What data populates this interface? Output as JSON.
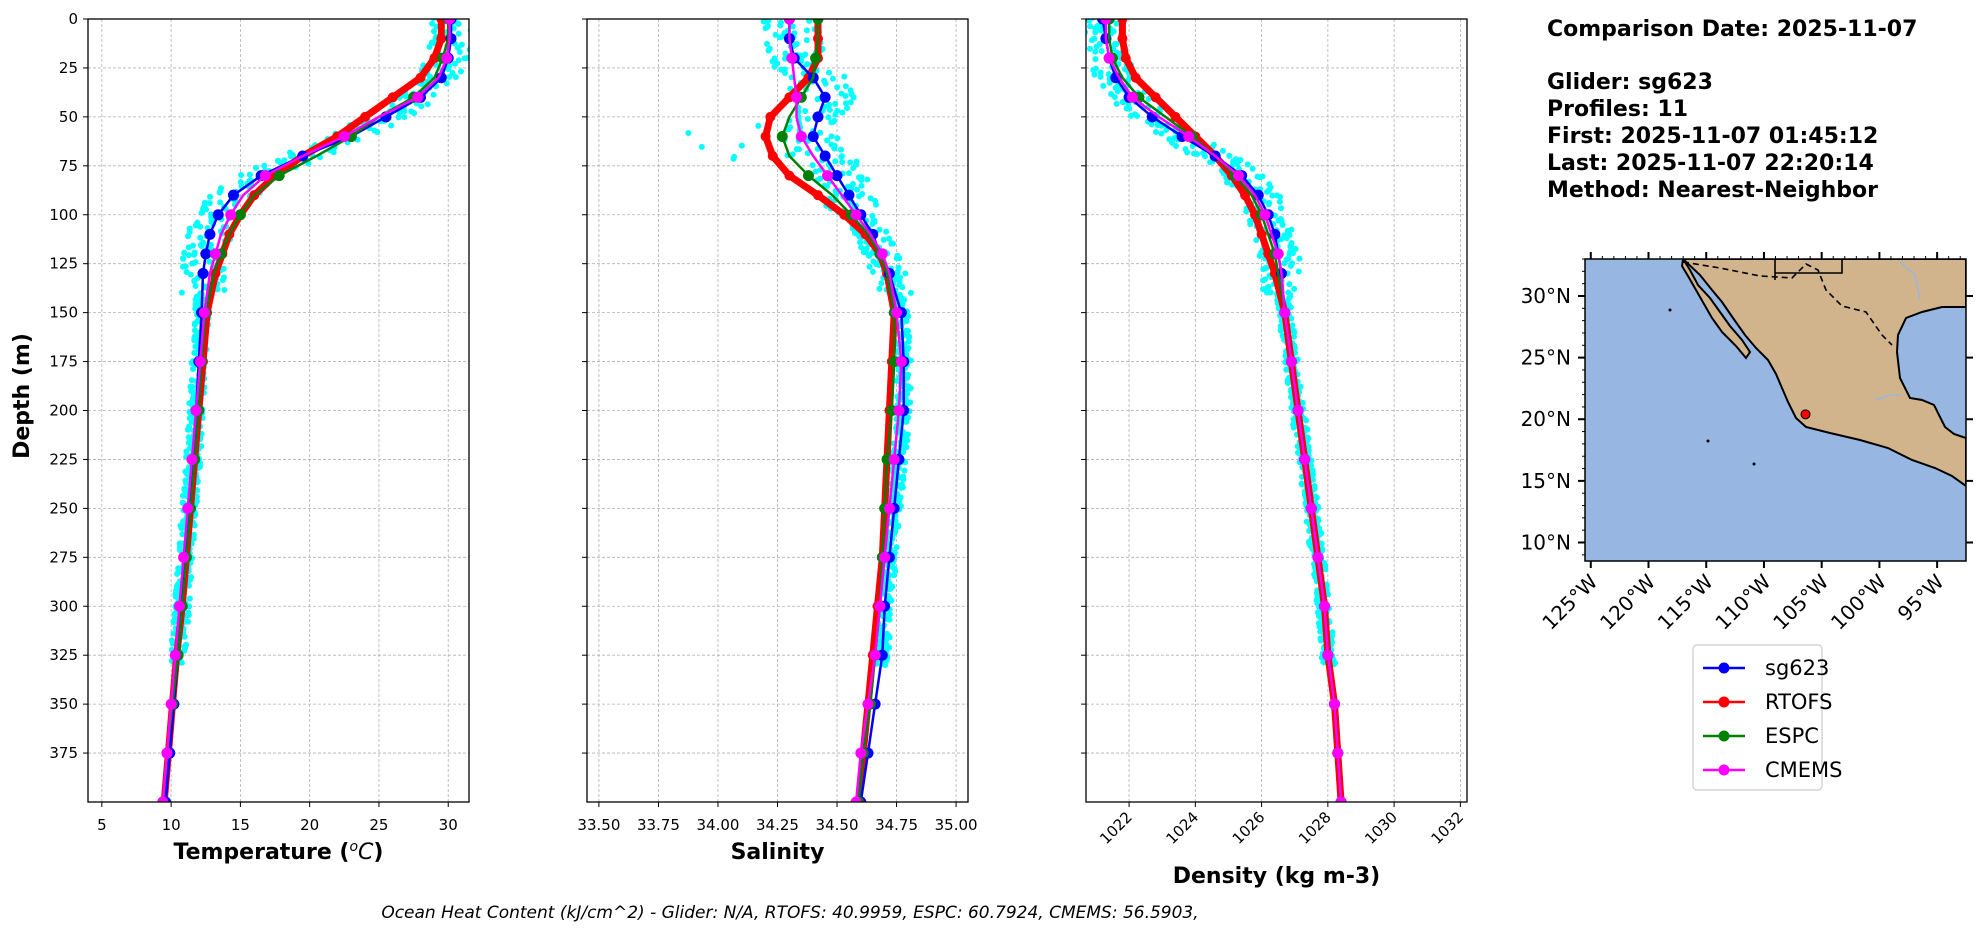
{
  "colors": {
    "glider": "#0000ff",
    "rtofs": "#ff0000",
    "espc": "#008000",
    "cmems": "#ff00ff",
    "glider_scatter": "#00ffff",
    "ocean": "#97b6e1",
    "land": "#d2b48c",
    "grid": "#b0b0b0"
  },
  "depth_axis": {
    "label": "Depth (m)",
    "ticks": [
      0,
      25,
      50,
      75,
      100,
      125,
      150,
      175,
      200,
      225,
      250,
      275,
      300,
      325,
      350,
      375
    ],
    "lim": [
      0,
      400
    ],
    "inverted": true
  },
  "info": {
    "comparison_date": "Comparison Date: 2025-11-07",
    "glider": "Glider: sg623",
    "profiles": "Profiles: 11",
    "first": "First: 2025-11-07 01:45:12",
    "last": "Last: 2025-11-07 22:20:14",
    "method": "Method: Nearest-Neighbor"
  },
  "footer": {
    "ohc": "Ocean Heat Content (kJ/cm^2) - Glider: N/A,  RTOFS: 40.9959,  ESPC: 60.7924,  CMEMS: 56.5903,"
  },
  "legend": {
    "placement": "below map",
    "entries": [
      "sg623",
      "RTOFS",
      "ESPC",
      "CMEMS"
    ]
  },
  "map": {
    "lat_ticks": [
      "30°N",
      "25°N",
      "20°N",
      "15°N",
      "10°N"
    ],
    "lat_values": [
      30,
      25,
      20,
      15,
      10
    ],
    "lon_ticks": [
      "125°W",
      "120°W",
      "115°W",
      "110°W",
      "105°W",
      "100°W",
      "95°W"
    ],
    "lon_values": [
      -125,
      -120,
      -115,
      -110,
      -105,
      -100,
      -95
    ],
    "extent": {
      "lon": [
        -125.5,
        -92.5
      ],
      "lat": [
        8.5,
        33
      ]
    },
    "glider_position": {
      "lon": -106.4,
      "lat": 20.4
    }
  },
  "chart_data": [
    {
      "type": "line",
      "xlabel": "Temperature",
      "xlim": [
        4,
        31.5
      ],
      "xticks": [
        5,
        10,
        15,
        20,
        25,
        30
      ],
      "grid": true,
      "series": [
        {
          "name": "sg623",
          "key": "glider",
          "depth": [
            0,
            10,
            20,
            30,
            40,
            50,
            60,
            70,
            80,
            90,
            100,
            110,
            120,
            130,
            150,
            175,
            200,
            225,
            250,
            275,
            300,
            325,
            350,
            375,
            400
          ],
          "values": [
            30.2,
            30.2,
            30.0,
            29.5,
            28.0,
            25.5,
            23.0,
            19.5,
            16.5,
            14.5,
            13.4,
            12.8,
            12.5,
            12.3,
            12.2,
            12.0,
            11.8,
            11.6,
            11.3,
            11.0,
            10.8,
            10.5,
            10.2,
            9.9,
            9.6
          ]
        },
        {
          "name": "RTOFS",
          "key": "rtofs",
          "depth": [
            0,
            10,
            20,
            30,
            40,
            50,
            60,
            70,
            80,
            90,
            100,
            110,
            120,
            130,
            150,
            175,
            200,
            225,
            250,
            275,
            300,
            325,
            350,
            375,
            400
          ],
          "values": [
            29.5,
            29.5,
            29.0,
            28.0,
            26.0,
            24.0,
            22.0,
            19.5,
            17.5,
            16.0,
            15.0,
            14.2,
            13.7,
            13.2,
            12.6,
            12.3,
            12.0,
            11.7,
            11.4,
            11.1,
            10.8,
            10.4,
            10.1,
            9.8,
            9.5
          ]
        },
        {
          "name": "ESPC",
          "key": "espc",
          "depth": [
            0,
            10,
            20,
            30,
            40,
            50,
            60,
            70,
            80,
            90,
            100,
            110,
            120,
            130,
            150,
            175,
            200,
            225,
            250,
            275,
            300,
            325,
            350,
            375,
            400
          ],
          "values": [
            30.0,
            30.0,
            29.6,
            29.0,
            27.5,
            25.0,
            23.0,
            20.5,
            17.8,
            16.0,
            15.0,
            14.2,
            13.6,
            13.1,
            12.5,
            12.2,
            12.0,
            11.7,
            11.4,
            11.1,
            10.8,
            10.5,
            10.1,
            9.7,
            9.4
          ]
        },
        {
          "name": "CMEMS",
          "key": "cmems",
          "depth": [
            0,
            10,
            20,
            30,
            40,
            50,
            60,
            70,
            80,
            90,
            100,
            110,
            120,
            130,
            150,
            175,
            200,
            225,
            250,
            275,
            300,
            325,
            350,
            375,
            400
          ],
          "values": [
            30.1,
            30.1,
            29.9,
            29.3,
            27.8,
            25.0,
            22.5,
            19.5,
            16.8,
            15.2,
            14.3,
            13.6,
            13.2,
            12.8,
            12.4,
            12.1,
            11.8,
            11.5,
            11.2,
            10.9,
            10.6,
            10.3,
            10.0,
            9.7,
            9.4
          ]
        }
      ]
    },
    {
      "type": "line",
      "xlabel": "Salinity",
      "xlim": [
        33.45,
        35.05
      ],
      "xticks": [
        33.5,
        33.75,
        34.0,
        34.25,
        34.5,
        34.75,
        35.0
      ],
      "xticklabels": [
        "33.50",
        "33.75",
        "34.00",
        "34.25",
        "34.50",
        "34.75",
        "35.00"
      ],
      "grid": true,
      "series": [
        {
          "name": "sg623",
          "key": "glider",
          "depth": [
            0,
            10,
            20,
            30,
            40,
            50,
            60,
            70,
            80,
            90,
            100,
            110,
            120,
            130,
            150,
            175,
            200,
            225,
            250,
            275,
            300,
            325,
            350,
            375,
            400
          ],
          "values": [
            34.3,
            34.3,
            34.32,
            34.4,
            34.45,
            34.42,
            34.4,
            34.45,
            34.5,
            34.55,
            34.6,
            34.65,
            34.68,
            34.72,
            34.77,
            34.78,
            34.78,
            34.76,
            34.74,
            34.72,
            34.7,
            34.69,
            34.66,
            34.63,
            34.6
          ]
        },
        {
          "name": "RTOFS",
          "key": "rtofs",
          "depth": [
            0,
            10,
            20,
            30,
            40,
            50,
            60,
            70,
            80,
            90,
            100,
            110,
            120,
            130,
            150,
            175,
            200,
            225,
            250,
            275,
            300,
            325,
            350,
            375,
            400
          ],
          "values": [
            34.42,
            34.42,
            34.42,
            34.38,
            34.3,
            34.22,
            34.2,
            34.23,
            34.3,
            34.42,
            34.53,
            34.62,
            34.68,
            34.71,
            34.74,
            34.73,
            34.72,
            34.71,
            34.7,
            34.69,
            34.67,
            34.65,
            34.63,
            34.61,
            34.59
          ]
        },
        {
          "name": "ESPC",
          "key": "espc",
          "depth": [
            0,
            10,
            20,
            30,
            40,
            50,
            60,
            70,
            80,
            90,
            100,
            110,
            120,
            130,
            150,
            175,
            200,
            225,
            250,
            275,
            300,
            325,
            350,
            375,
            400
          ],
          "values": [
            34.42,
            34.42,
            34.41,
            34.4,
            34.35,
            34.3,
            34.27,
            34.3,
            34.38,
            34.48,
            34.56,
            34.63,
            34.68,
            34.71,
            34.74,
            34.74,
            34.73,
            34.71,
            34.7,
            34.69,
            34.68,
            34.66,
            34.64,
            34.61,
            34.59
          ]
        },
        {
          "name": "CMEMS",
          "key": "cmems",
          "depth": [
            0,
            10,
            20,
            30,
            40,
            50,
            60,
            70,
            80,
            90,
            100,
            110,
            120,
            130,
            150,
            175,
            200,
            225,
            250,
            275,
            300,
            325,
            350,
            375,
            400
          ],
          "values": [
            34.3,
            34.3,
            34.31,
            34.32,
            34.33,
            34.33,
            34.35,
            34.4,
            34.46,
            34.52,
            34.58,
            34.64,
            34.69,
            34.72,
            34.75,
            34.77,
            34.76,
            34.74,
            34.72,
            34.7,
            34.68,
            34.66,
            34.63,
            34.6,
            34.58
          ]
        }
      ]
    },
    {
      "type": "line",
      "xlabel": "Density (kg m-3)",
      "xlim": [
        1020.7,
        1032.2
      ],
      "xticks": [
        1022,
        1024,
        1026,
        1028,
        1030,
        1032
      ],
      "grid": true,
      "series": [
        {
          "name": "sg623",
          "key": "glider",
          "depth": [
            0,
            10,
            20,
            30,
            40,
            50,
            60,
            70,
            80,
            90,
            100,
            110,
            120,
            130,
            150,
            175,
            200,
            225,
            250,
            275,
            300,
            325,
            350,
            375,
            400
          ],
          "values": [
            1021.2,
            1021.3,
            1021.4,
            1021.6,
            1022.0,
            1022.7,
            1023.6,
            1024.6,
            1025.4,
            1025.9,
            1026.2,
            1026.4,
            1026.5,
            1026.6,
            1026.7,
            1026.9,
            1027.1,
            1027.3,
            1027.5,
            1027.7,
            1027.9,
            1028.0,
            1028.2,
            1028.3,
            1028.4
          ]
        },
        {
          "name": "RTOFS",
          "key": "rtofs",
          "depth": [
            0,
            10,
            20,
            30,
            40,
            50,
            60,
            70,
            80,
            90,
            100,
            110,
            120,
            130,
            150,
            175,
            200,
            225,
            250,
            275,
            300,
            325,
            350,
            375,
            400
          ],
          "values": [
            1021.8,
            1021.8,
            1021.9,
            1022.2,
            1022.8,
            1023.4,
            1024.0,
            1024.6,
            1025.1,
            1025.5,
            1025.8,
            1026.0,
            1026.2,
            1026.4,
            1026.7,
            1026.9,
            1027.1,
            1027.3,
            1027.5,
            1027.7,
            1027.9,
            1028.0,
            1028.2,
            1028.3,
            1028.4
          ]
        },
        {
          "name": "ESPC",
          "key": "espc",
          "depth": [
            0,
            10,
            20,
            30,
            40,
            50,
            60,
            70,
            80,
            90,
            100,
            110,
            120,
            130,
            150,
            175,
            200,
            225,
            250,
            275,
            300,
            325,
            350,
            375,
            400
          ],
          "values": [
            1021.4,
            1021.4,
            1021.5,
            1021.8,
            1022.3,
            1023.1,
            1023.9,
            1024.6,
            1025.2,
            1025.7,
            1026.0,
            1026.2,
            1026.4,
            1026.5,
            1026.7,
            1026.9,
            1027.1,
            1027.3,
            1027.5,
            1027.7,
            1027.9,
            1028.0,
            1028.2,
            1028.3,
            1028.4
          ]
        },
        {
          "name": "CMEMS",
          "key": "cmems",
          "depth": [
            0,
            10,
            20,
            30,
            40,
            50,
            60,
            70,
            80,
            90,
            100,
            110,
            120,
            130,
            150,
            175,
            200,
            225,
            250,
            275,
            300,
            325,
            350,
            375,
            400
          ],
          "values": [
            1021.3,
            1021.3,
            1021.4,
            1021.7,
            1022.1,
            1022.9,
            1023.8,
            1024.6,
            1025.3,
            1025.8,
            1026.1,
            1026.3,
            1026.5,
            1026.6,
            1026.7,
            1026.9,
            1027.1,
            1027.3,
            1027.5,
            1027.7,
            1027.9,
            1028.0,
            1028.2,
            1028.3,
            1028.4
          ]
        }
      ]
    }
  ]
}
